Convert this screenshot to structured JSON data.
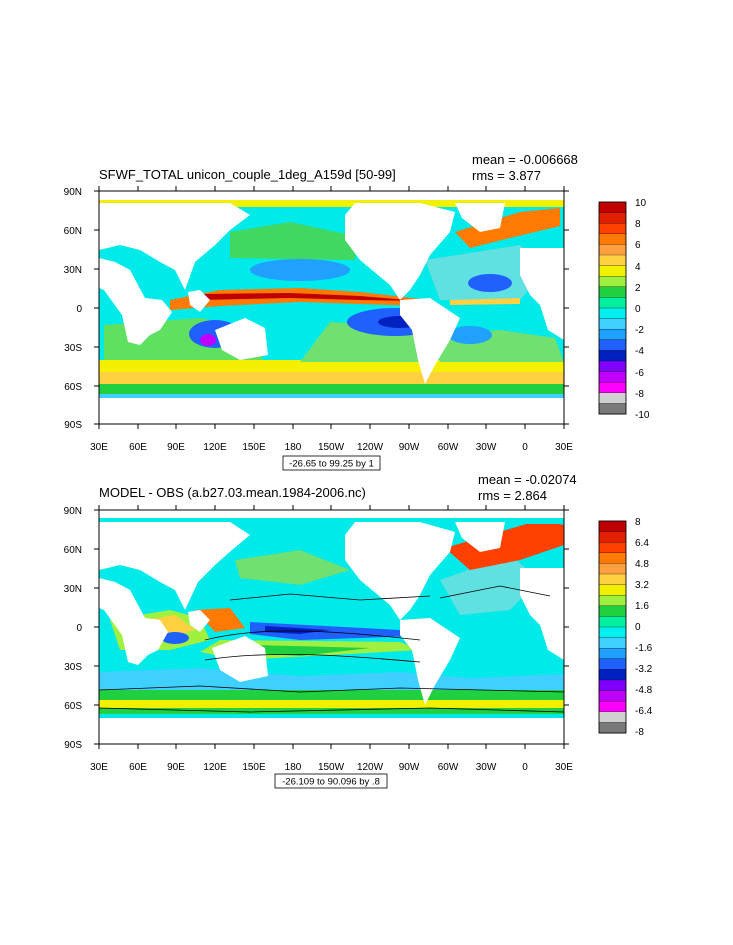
{
  "panels": [
    {
      "title": "SFWF_TOTAL unicon_couple_1deg_A159d [50-99]",
      "mean_text": "mean = -0.006668",
      "rms_text": "rms = 3.877",
      "range_text": "-26.65 to 99.25 by 1",
      "lat_labels": [
        "90N",
        "60N",
        "30N",
        "0",
        "30S",
        "60S",
        "90S"
      ],
      "lon_labels": [
        "30E",
        "60E",
        "90E",
        "120E",
        "150E",
        "180",
        "150W",
        "120W",
        "90W",
        "60W",
        "30W",
        "0",
        "30E"
      ],
      "colorbar_labels": [
        "10",
        "8",
        "6",
        "4",
        "2",
        "0",
        "-2",
        "-4",
        "-6",
        "-8",
        "-10"
      ]
    },
    {
      "title": "MODEL - OBS (a.b27.03.mean.1984-2006.nc)",
      "mean_text": "mean = -0.02074",
      "rms_text": "rms = 2.864",
      "range_text": "-26.109 to 90.096 by .8",
      "lat_labels": [
        "90N",
        "60N",
        "30N",
        "0",
        "30S",
        "60S",
        "90S"
      ],
      "lon_labels": [
        "30E",
        "60E",
        "90E",
        "120E",
        "150E",
        "180",
        "150W",
        "120W",
        "90W",
        "60W",
        "30W",
        "0",
        "30E"
      ],
      "colorbar_labels": [
        "8",
        "6.4",
        "4.8",
        "3.2",
        "1.6",
        "0",
        "-1.6",
        "-3.2",
        "-4.8",
        "-6.4",
        "-8"
      ]
    }
  ],
  "colorbar_colors": [
    "#c00000",
    "#e02000",
    "#ff4000",
    "#ff7a00",
    "#ffa040",
    "#ffd040",
    "#f0f000",
    "#a0f040",
    "#20d040",
    "#00f0a0",
    "#00f0f0",
    "#40d0ff",
    "#20a0ff",
    "#2060ff",
    "#0020c0",
    "#8000ff",
    "#c000ff",
    "#ff00ff",
    "#d0d0d0",
    "#7a7a7a"
  ]
}
